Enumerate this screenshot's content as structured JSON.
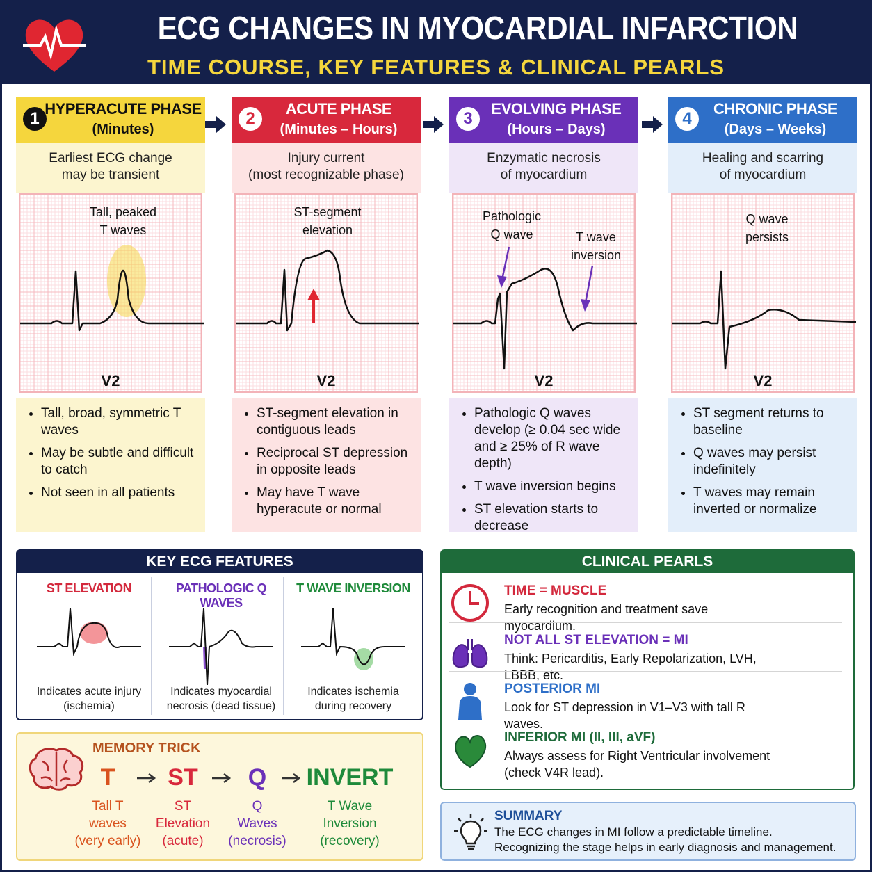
{
  "header": {
    "title": "ECG CHANGES IN MYOCARDIAL INFARCTION",
    "subtitle": "TIME COURSE, KEY FEATURES & CLINICAL PEARLS"
  },
  "phases": [
    {
      "number": "1",
      "title": "HYPERACUTE PHASE",
      "time": "(Minutes)",
      "description": [
        "Earliest ECG change",
        "may be transient"
      ],
      "annotations": [
        [
          "Tall, peaked",
          "T waves"
        ]
      ],
      "lead": "V2",
      "bullets": [
        "Tall, broad, symmetric T waves",
        "May be subtle and difficult to catch",
        "Not seen in all patients"
      ]
    },
    {
      "number": "2",
      "title": "ACUTE PHASE",
      "time": "(Minutes – Hours)",
      "description": [
        "Injury current",
        "(most recognizable phase)"
      ],
      "annotations": [
        [
          "ST-segment",
          "elevation"
        ]
      ],
      "lead": "V2",
      "bullets": [
        "ST-segment elevation in contiguous leads",
        "Reciprocal ST depression in opposite leads",
        "May have T wave hyperacute or normal"
      ]
    },
    {
      "number": "3",
      "title": "EVOLVING PHASE",
      "time": "(Hours – Days)",
      "description": [
        "Enzymatic necrosis",
        "of myocardium"
      ],
      "annotations": [
        [
          "Pathologic",
          "Q wave"
        ],
        [
          "T wave",
          "inversion"
        ]
      ],
      "lead": "V2",
      "bullets": [
        "Pathologic Q waves develop (≥ 0.04 sec wide and ≥ 25% of R wave depth)",
        "T wave inversion begins",
        "ST elevation starts to decrease"
      ]
    },
    {
      "number": "4",
      "title": "CHRONIC PHASE",
      "time": "(Days – Weeks)",
      "description": [
        "Healing and scarring",
        "of myocardium"
      ],
      "annotations": [
        [
          "Q wave",
          "persists"
        ]
      ],
      "lead": "V2",
      "bullets": [
        "ST segment returns to baseline",
        "Q waves may persist indefinitely",
        "T waves may remain inverted or normalize"
      ]
    }
  ],
  "key_features": {
    "title": "KEY ECG FEATURES",
    "items": [
      {
        "title": "ST ELEVATION",
        "caption": [
          "Indicates acute injury",
          "(ischemia)"
        ]
      },
      {
        "title": "PATHOLOGIC Q WAVES",
        "caption": [
          "Indicates myocardial",
          "necrosis (dead tissue)"
        ]
      },
      {
        "title": "T WAVE INVERSION",
        "caption": [
          "Indicates ischemia",
          "during recovery"
        ]
      }
    ]
  },
  "memory_trick": {
    "title": "MEMORY TRICK",
    "steps": [
      {
        "letter": "T",
        "caption": [
          "Tall T",
          "waves",
          "(very early)"
        ]
      },
      {
        "letter": "ST",
        "caption": [
          "ST",
          "Elevation",
          "(acute)"
        ]
      },
      {
        "letter": "Q",
        "caption": [
          "Q",
          "Waves",
          "(necrosis)"
        ]
      },
      {
        "letter": "INVERT",
        "caption": [
          "T Wave",
          "Inversion",
          "(recovery)"
        ]
      }
    ]
  },
  "clinical_pearls": {
    "title": "CLINICAL PEARLS",
    "items": [
      {
        "heading": "TIME = MUSCLE",
        "text": "Early recognition and treatment save myocardium."
      },
      {
        "heading": "NOT ALL ST ELEVATION = MI",
        "text": "Think: Pericarditis, Early Repolarization, LVH, LBBB, etc."
      },
      {
        "heading": "POSTERIOR MI",
        "text": "Look for ST depression in V1–V3 with tall R waves."
      },
      {
        "heading": "INFERIOR MI (II, III, aVF)",
        "text": "Always assess for Right Ventricular involvement (check V4R lead)."
      }
    ]
  },
  "summary": {
    "title": "SUMMARY",
    "lines": [
      "The ECG changes in MI follow a predictable timeline.",
      "Recognizing the stage helps in early diagnosis and management."
    ]
  }
}
